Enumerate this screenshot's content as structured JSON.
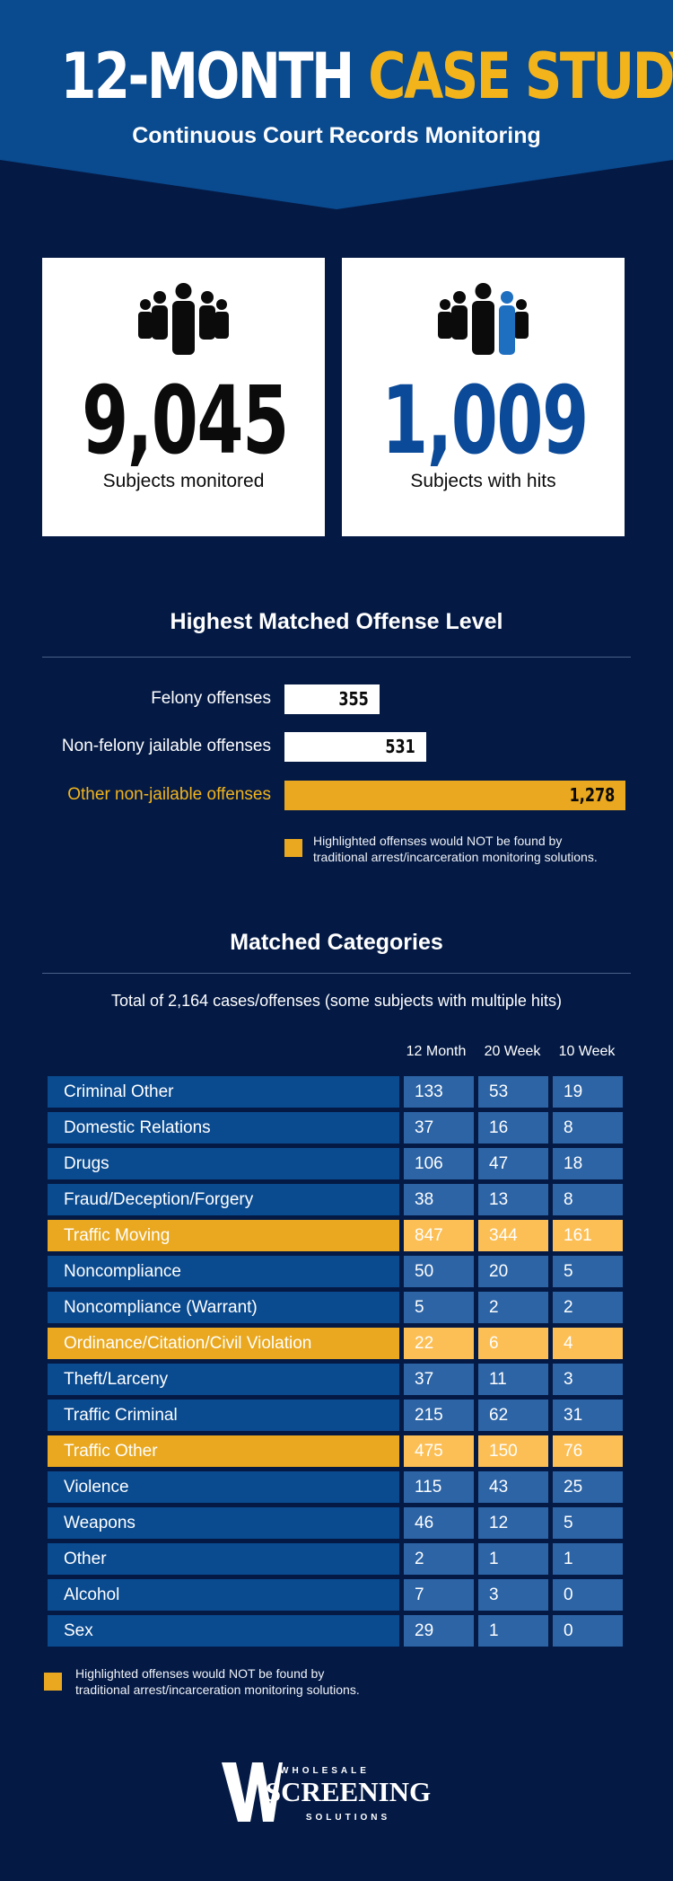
{
  "header": {
    "title_part1": "12-MONTH",
    "title_part2": "CASE STUDY",
    "subtitle": "Continuous Court Records Monitoring"
  },
  "stats": [
    {
      "value": "9,045",
      "label": "Subjects monitored",
      "icon": "people-group-icon"
    },
    {
      "value": "1,009",
      "label": "Subjects with hits",
      "icon": "people-group-highlighted-icon"
    }
  ],
  "offense_section": {
    "title": "Highest Matched Offense Level",
    "bars": [
      {
        "label": "Felony offenses",
        "value": 355,
        "display": "355",
        "highlighted": false
      },
      {
        "label": "Non-felony jailable offenses",
        "value": 531,
        "display": "531",
        "highlighted": false
      },
      {
        "label": "Other non-jailable offenses",
        "value": 1278,
        "display": "1,278",
        "highlighted": true
      }
    ],
    "note_line1": "Highlighted offenses would NOT be found by",
    "note_line2": "traditional arrest/incarceration monitoring solutions."
  },
  "categories_section": {
    "title": "Matched Categories",
    "subtitle": "Total of 2,164 cases/offenses (some subjects with multiple hits)",
    "columns": [
      "12 Month",
      "20 Week",
      "10 Week"
    ],
    "rows": [
      {
        "name": "Criminal Other",
        "values": [
          "133",
          "53",
          "19"
        ],
        "highlighted": false
      },
      {
        "name": "Domestic Relations",
        "values": [
          "37",
          "16",
          "8"
        ],
        "highlighted": false
      },
      {
        "name": "Drugs",
        "values": [
          "106",
          "47",
          "18"
        ],
        "highlighted": false
      },
      {
        "name": "Fraud/Deception/Forgery",
        "values": [
          "38",
          "13",
          "8"
        ],
        "highlighted": false
      },
      {
        "name": "Traffic Moving",
        "values": [
          "847",
          "344",
          "161"
        ],
        "highlighted": true
      },
      {
        "name": "Noncompliance",
        "values": [
          "50",
          "20",
          "5"
        ],
        "highlighted": false
      },
      {
        "name": "Noncompliance (Warrant)",
        "values": [
          "5",
          "2",
          "2"
        ],
        "highlighted": false
      },
      {
        "name": "Ordinance/Citation/Civil Violation",
        "values": [
          "22",
          "6",
          "4"
        ],
        "highlighted": true
      },
      {
        "name": "Theft/Larceny",
        "values": [
          "37",
          "11",
          "3"
        ],
        "highlighted": false
      },
      {
        "name": "Traffic Criminal",
        "values": [
          "215",
          "62",
          "31"
        ],
        "highlighted": false
      },
      {
        "name": "Traffic Other",
        "values": [
          "475",
          "150",
          "76"
        ],
        "highlighted": true
      },
      {
        "name": "Violence",
        "values": [
          "115",
          "43",
          "25"
        ],
        "highlighted": false
      },
      {
        "name": "Weapons",
        "values": [
          "46",
          "12",
          "5"
        ],
        "highlighted": false
      },
      {
        "name": "Other",
        "values": [
          "2",
          "1",
          "1"
        ],
        "highlighted": false
      },
      {
        "name": "Alcohol",
        "values": [
          "7",
          "3",
          "0"
        ],
        "highlighted": false
      },
      {
        "name": "Sex",
        "values": [
          "29",
          "1",
          "0"
        ],
        "highlighted": false
      }
    ],
    "note_line1": "Highlighted offenses would NOT be found by",
    "note_line2": "traditional arrest/incarceration monitoring solutions."
  },
  "logo": {
    "line1": "WHOLESALE",
    "line2": "SCREENING",
    "line3": "SOLUTIONS",
    "mark": "W"
  },
  "colors": {
    "background": "#041a45",
    "header_blue": "#0a4a8f",
    "accent": "#f3b41b",
    "highlight_row": "#e9a81f",
    "highlight_cell": "#fcbf55",
    "cell_blue": "#2c64a6",
    "stat_blue": "#0b4a99"
  }
}
